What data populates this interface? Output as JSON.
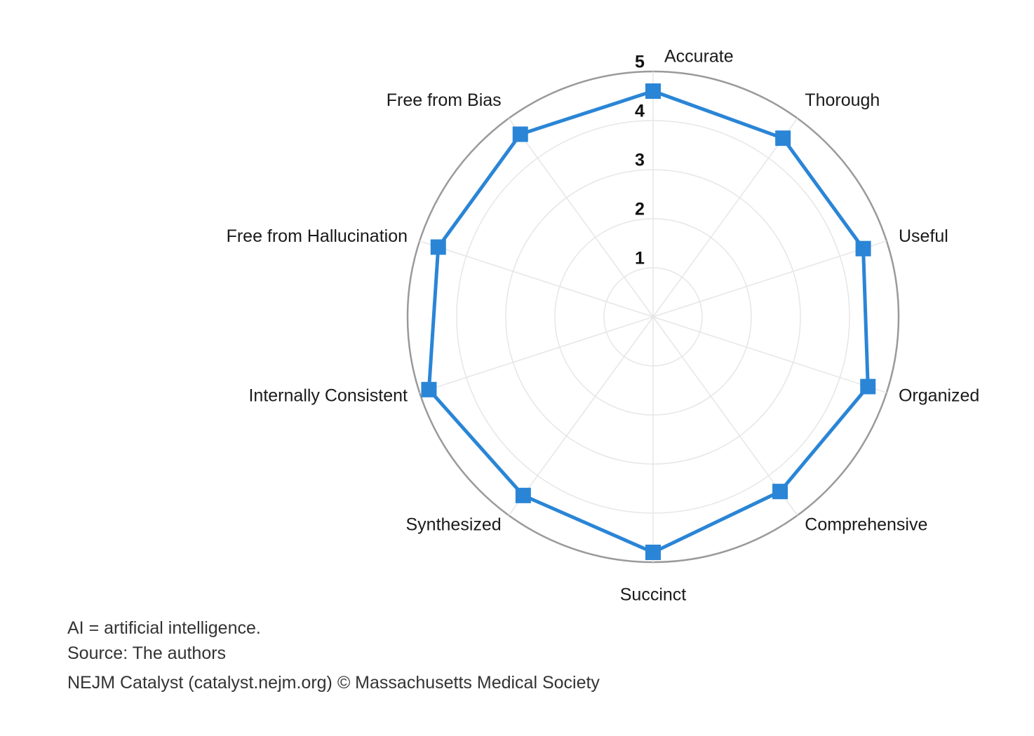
{
  "chart_data": {
    "type": "radar",
    "axes": [
      "Accurate",
      "Thorough",
      "Useful",
      "Organized",
      "Comprehensive",
      "Succinct",
      "Synthesized",
      "Internally Consistent",
      "Free from Hallucination",
      "Free from Bias"
    ],
    "series": [
      {
        "values": [
          4.6,
          4.5,
          4.5,
          4.6,
          4.4,
          4.8,
          4.5,
          4.8,
          4.6,
          4.6
        ],
        "color": "#2a85d6"
      }
    ],
    "rlim": [
      0,
      5
    ],
    "r_ticks": [
      "1",
      "2",
      "3",
      "4",
      "5"
    ],
    "outer_ring_color": "#9a9a9a",
    "grid_color": "#e6e6e6"
  },
  "notes": {
    "abbreviation": "AI = artificial intelligence.",
    "source": "Source: The authors"
  },
  "footer": "NEJM Catalyst (catalyst.nejm.org) © Massachusetts Medical Society"
}
